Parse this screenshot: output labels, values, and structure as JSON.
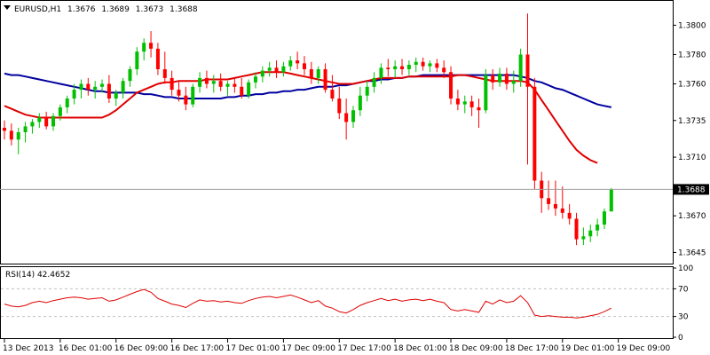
{
  "chart_data": {
    "type": "candlestick",
    "symbol_timeframe": "EURUSD,H1",
    "ohlc_readout": [
      "1.3676",
      "1.3689",
      "1.3673",
      "1.3688"
    ],
    "current_price_label": "1.3688",
    "current_price": 1.3688,
    "y_ticks": [
      "1.3800",
      "1.3780",
      "1.3760",
      "1.3735",
      "1.3710",
      "1.3670",
      "1.3645"
    ],
    "y_tick_values": [
      1.38,
      1.378,
      1.376,
      1.3735,
      1.371,
      1.367,
      1.3645
    ],
    "ylim": [
      1.3638,
      1.3816
    ],
    "x_labels": [
      "13 Dec 2013",
      "16 Dec 01:00",
      "16 Dec 09:00",
      "16 Dec 17:00",
      "17 Dec 01:00",
      "17 Dec 09:00",
      "17 Dec 17:00",
      "18 Dec 01:00",
      "18 Dec 09:00",
      "18 Dec 17:00",
      "19 Dec 01:00",
      "19 Dec 09:00"
    ],
    "x_label_bar_index": [
      0,
      8,
      16,
      24,
      32,
      40,
      48,
      56,
      64,
      72,
      80,
      88
    ],
    "colors": {
      "bull": "#00c000",
      "bear": "#ff0000",
      "ma_fast": "#e00000",
      "ma_slow": "#0000a0",
      "rsi": "#e00000",
      "grid": "#c0c0c0"
    },
    "candles": [
      [
        1.373,
        1.3735,
        1.3722,
        1.3728
      ],
      [
        1.3728,
        1.3733,
        1.3718,
        1.3722
      ],
      [
        1.3722,
        1.373,
        1.3712,
        1.3727
      ],
      [
        1.3727,
        1.3734,
        1.372,
        1.3731
      ],
      [
        1.3731,
        1.3736,
        1.3726,
        1.3734
      ],
      [
        1.3734,
        1.374,
        1.373,
        1.3737
      ],
      [
        1.3737,
        1.3741,
        1.3729,
        1.3731
      ],
      [
        1.3731,
        1.374,
        1.3728,
        1.3738
      ],
      [
        1.3738,
        1.3746,
        1.3735,
        1.3744
      ],
      [
        1.3744,
        1.3752,
        1.374,
        1.375
      ],
      [
        1.375,
        1.376,
        1.3746,
        1.3756
      ],
      [
        1.3756,
        1.3763,
        1.375,
        1.376
      ],
      [
        1.376,
        1.3764,
        1.3752,
        1.3756
      ],
      [
        1.3756,
        1.3762,
        1.375,
        1.3758
      ],
      [
        1.3758,
        1.3763,
        1.3754,
        1.376
      ],
      [
        1.376,
        1.3766,
        1.3747,
        1.375
      ],
      [
        1.375,
        1.3756,
        1.3745,
        1.3754
      ],
      [
        1.3754,
        1.3764,
        1.375,
        1.3762
      ],
      [
        1.3762,
        1.3772,
        1.3758,
        1.377
      ],
      [
        1.377,
        1.3785,
        1.3766,
        1.3782
      ],
      [
        1.3782,
        1.3791,
        1.3776,
        1.3788
      ],
      [
        1.3788,
        1.3796,
        1.3778,
        1.3784
      ],
      [
        1.3784,
        1.3788,
        1.3766,
        1.377
      ],
      [
        1.377,
        1.3782,
        1.376,
        1.3764
      ],
      [
        1.3764,
        1.3769,
        1.3752,
        1.3756
      ],
      [
        1.3756,
        1.3762,
        1.3748,
        1.3752
      ],
      [
        1.3752,
        1.3758,
        1.3742,
        1.3746
      ],
      [
        1.3746,
        1.376,
        1.3744,
        1.3758
      ],
      [
        1.3758,
        1.3768,
        1.3754,
        1.3764
      ],
      [
        1.3764,
        1.3769,
        1.3757,
        1.376
      ],
      [
        1.376,
        1.3766,
        1.3754,
        1.3762
      ],
      [
        1.3762,
        1.3767,
        1.3755,
        1.3758
      ],
      [
        1.3758,
        1.3762,
        1.3752,
        1.376
      ],
      [
        1.376,
        1.3764,
        1.3754,
        1.3758
      ],
      [
        1.3758,
        1.3764,
        1.375,
        1.3752
      ],
      [
        1.3752,
        1.3763,
        1.375,
        1.3761
      ],
      [
        1.3761,
        1.3768,
        1.3757,
        1.3765
      ],
      [
        1.3765,
        1.3772,
        1.3761,
        1.3769
      ],
      [
        1.3769,
        1.3775,
        1.3765,
        1.3771
      ],
      [
        1.3771,
        1.3776,
        1.3764,
        1.3768
      ],
      [
        1.3768,
        1.3775,
        1.3765,
        1.3772
      ],
      [
        1.3772,
        1.3779,
        1.3769,
        1.3776
      ],
      [
        1.3776,
        1.3782,
        1.377,
        1.3774
      ],
      [
        1.3774,
        1.3779,
        1.3766,
        1.377
      ],
      [
        1.377,
        1.3775,
        1.376,
        1.3764
      ],
      [
        1.3764,
        1.3772,
        1.376,
        1.377
      ],
      [
        1.377,
        1.3774,
        1.3754,
        1.3756
      ],
      [
        1.3756,
        1.3766,
        1.3748,
        1.375
      ],
      [
        1.375,
        1.3758,
        1.3736,
        1.374
      ],
      [
        1.374,
        1.375,
        1.3722,
        1.3734
      ],
      [
        1.3734,
        1.3745,
        1.373,
        1.3742
      ],
      [
        1.3742,
        1.3758,
        1.3738,
        1.3752
      ],
      [
        1.3752,
        1.3762,
        1.3748,
        1.3758
      ],
      [
        1.3758,
        1.3768,
        1.3754,
        1.3764
      ],
      [
        1.3764,
        1.3774,
        1.376,
        1.3771
      ],
      [
        1.3771,
        1.3777,
        1.3765,
        1.377
      ],
      [
        1.377,
        1.3776,
        1.3764,
        1.3772
      ],
      [
        1.3772,
        1.3777,
        1.3766,
        1.377
      ],
      [
        1.377,
        1.3776,
        1.3766,
        1.3773
      ],
      [
        1.3773,
        1.3778,
        1.3768,
        1.3775
      ],
      [
        1.3775,
        1.3778,
        1.3769,
        1.3772
      ],
      [
        1.3772,
        1.3776,
        1.3768,
        1.3774
      ],
      [
        1.3774,
        1.3777,
        1.3768,
        1.3771
      ],
      [
        1.3771,
        1.3776,
        1.3764,
        1.3768
      ],
      [
        1.3768,
        1.3772,
        1.3746,
        1.375
      ],
      [
        1.375,
        1.3756,
        1.3742,
        1.3746
      ],
      [
        1.3746,
        1.3752,
        1.374,
        1.3748
      ],
      [
        1.3748,
        1.3752,
        1.3738,
        1.3744
      ],
      [
        1.3744,
        1.375,
        1.373,
        1.3742
      ],
      [
        1.3742,
        1.377,
        1.374,
        1.3766
      ],
      [
        1.3766,
        1.377,
        1.3756,
        1.3761
      ],
      [
        1.3761,
        1.3771,
        1.3758,
        1.3767
      ],
      [
        1.3767,
        1.3771,
        1.3756,
        1.376
      ],
      [
        1.376,
        1.3769,
        1.3754,
        1.3762
      ],
      [
        1.3762,
        1.3784,
        1.3758,
        1.378
      ],
      [
        1.378,
        1.3808,
        1.3705,
        1.3758
      ],
      [
        1.3758,
        1.3764,
        1.3688,
        1.3694
      ],
      [
        1.3694,
        1.37,
        1.3672,
        1.3682
      ],
      [
        1.3682,
        1.3694,
        1.3674,
        1.3678
      ],
      [
        1.3678,
        1.3694,
        1.367,
        1.3675
      ],
      [
        1.3675,
        1.369,
        1.3668,
        1.3672
      ],
      [
        1.3672,
        1.3678,
        1.3664,
        1.3668
      ],
      [
        1.3668,
        1.3672,
        1.365,
        1.3654
      ],
      [
        1.3654,
        1.3662,
        1.365,
        1.3656
      ],
      [
        1.3656,
        1.3664,
        1.3652,
        1.366
      ],
      [
        1.366,
        1.3668,
        1.3656,
        1.3664
      ],
      [
        1.3664,
        1.3675,
        1.3661,
        1.3673
      ],
      [
        1.3673,
        1.3689,
        1.3673,
        1.3688
      ]
    ],
    "ma_fast": [
      1.3745,
      1.3743,
      1.3741,
      1.3739,
      1.3738,
      1.3737,
      1.3737,
      1.3737,
      1.3737,
      1.3737,
      1.3737,
      1.3737,
      1.3737,
      1.3737,
      1.3737,
      1.3739,
      1.3742,
      1.3746,
      1.375,
      1.3754,
      1.3756,
      1.3758,
      1.376,
      1.3761,
      1.3761,
      1.3762,
      1.3762,
      1.3762,
      1.3762,
      1.3763,
      1.3763,
      1.3763,
      1.3763,
      1.3764,
      1.3765,
      1.3766,
      1.3767,
      1.3768,
      1.3768,
      1.3768,
      1.3768,
      1.3767,
      1.3766,
      1.3765,
      1.3764,
      1.3763,
      1.3762,
      1.3761,
      1.376,
      1.376,
      1.376,
      1.3761,
      1.3762,
      1.3763,
      1.3764,
      1.3764,
      1.3764,
      1.3764,
      1.3765,
      1.3765,
      1.3765,
      1.3765,
      1.3765,
      1.3765,
      1.3765,
      1.3766,
      1.3766,
      1.3765,
      1.3764,
      1.3763,
      1.3762,
      1.3762,
      1.3762,
      1.3762,
      1.3762,
      1.3761,
      1.3756,
      1.3749,
      1.3742,
      1.3735,
      1.3728,
      1.3721,
      1.3715,
      1.3711,
      1.3708,
      1.3706
    ],
    "ma_slow": [
      1.3767,
      1.3766,
      1.3766,
      1.3765,
      1.3764,
      1.3763,
      1.3762,
      1.3761,
      1.376,
      1.3759,
      1.3758,
      1.3757,
      1.3756,
      1.3755,
      1.3755,
      1.3754,
      1.3754,
      1.3754,
      1.3754,
      1.3754,
      1.3753,
      1.3753,
      1.3752,
      1.3751,
      1.3751,
      1.375,
      1.375,
      1.375,
      1.375,
      1.375,
      1.375,
      1.375,
      1.3751,
      1.3751,
      1.3752,
      1.3752,
      1.3753,
      1.3753,
      1.3754,
      1.3754,
      1.3755,
      1.3755,
      1.3756,
      1.3756,
      1.3757,
      1.3758,
      1.3758,
      1.3758,
      1.3759,
      1.3759,
      1.376,
      1.3761,
      1.3762,
      1.3762,
      1.3763,
      1.3763,
      1.3764,
      1.3764,
      1.3765,
      1.3765,
      1.3766,
      1.3766,
      1.3766,
      1.3766,
      1.3766,
      1.3766,
      1.3766,
      1.3766,
      1.3766,
      1.3766,
      1.3766,
      1.3766,
      1.3766,
      1.3766,
      1.3765,
      1.3764,
      1.3762,
      1.3761,
      1.3759,
      1.3757,
      1.3756,
      1.3754,
      1.3752,
      1.375,
      1.3748,
      1.3746,
      1.3745,
      1.3744
    ],
    "rsi": {
      "label": "RSI(14) 42.4652",
      "ticks": [
        "100",
        "70",
        "30",
        "0"
      ],
      "tick_values": [
        100,
        70,
        30,
        0
      ],
      "levels": [
        70,
        30
      ],
      "values": [
        48,
        45,
        44,
        46,
        50,
        52,
        50,
        53,
        55,
        57,
        58,
        57,
        55,
        56,
        57,
        52,
        54,
        58,
        62,
        66,
        69,
        65,
        56,
        52,
        48,
        46,
        43,
        49,
        54,
        52,
        53,
        51,
        52,
        50,
        49,
        53,
        56,
        58,
        59,
        57,
        59,
        61,
        58,
        54,
        50,
        53,
        45,
        42,
        37,
        35,
        40,
        46,
        50,
        53,
        56,
        53,
        55,
        52,
        54,
        55,
        53,
        55,
        52,
        50,
        40,
        38,
        40,
        38,
        36,
        52,
        48,
        54,
        50,
        52,
        60,
        50,
        32,
        30,
        31,
        30,
        29,
        29,
        28,
        29,
        31,
        33,
        37,
        42
      ]
    }
  }
}
